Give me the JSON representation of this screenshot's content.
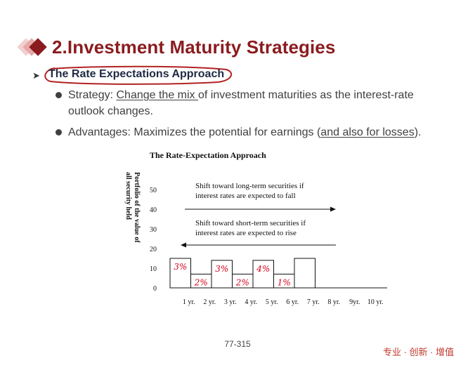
{
  "slide": {
    "title": "2.Investment Maturity Strategies",
    "subheading": "The Rate Expectations Approach",
    "bullets": {
      "b1_prefix": "Strategy: ",
      "b1_underlined": "Change the mix ",
      "b1_rest_line1": "of investment maturities as the interest-rate",
      "b1_line2": "outlook changes.",
      "b2_prefix": "Advantages: Maximizes the potential for earnings (",
      "b2_underlined": "and also for losses",
      "b2_suffix": ")."
    },
    "page_number": "77-315",
    "footer_brand": "专业 · 创新 · 增值"
  },
  "chart_data": {
    "type": "bar",
    "title": "The Rate-Expectation Approach",
    "ylabel_line1": "Portfolio of the value of",
    "ylabel_line2": "all security held",
    "y_ticks": [
      "0",
      "10",
      "20",
      "30",
      "40",
      "50"
    ],
    "categories": [
      "1 yr.",
      "2 yr.",
      "3 yr.",
      "4 yr.",
      "5 yr.",
      "6 yr.",
      "7 yr.",
      "8 yr.",
      "9yr.",
      "10 yr."
    ],
    "values": [
      15,
      7,
      14,
      7,
      14,
      7,
      15,
      0,
      0,
      0
    ],
    "ylim": [
      0,
      50
    ],
    "annotation_long": [
      "Shift toward long-term securities if",
      "interest rates are expected to fall"
    ],
    "annotation_short": [
      "Shift toward short-term securities if",
      "interest rates are expected to rise"
    ],
    "handwritten": [
      "3%",
      "2%",
      "3%",
      "2%",
      "4%",
      "1%"
    ]
  },
  "colors": {
    "title": "#8a1c1f",
    "diamond_dark": "#8a1c1f",
    "diamond_light": "#e8a8a8",
    "circle": "#b22222",
    "handwriting": "#d0021b",
    "footer": "#c0392b"
  }
}
